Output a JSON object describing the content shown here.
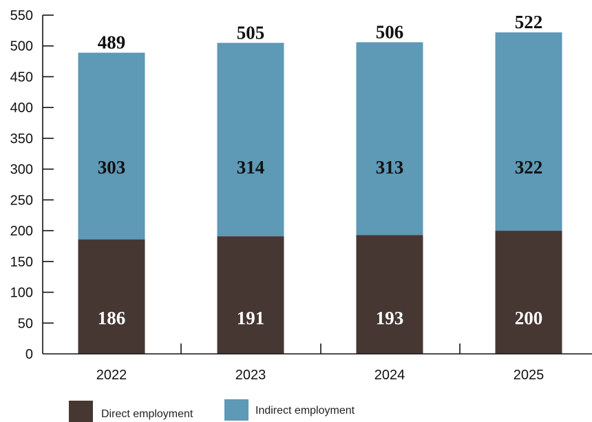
{
  "chart_data": {
    "type": "bar",
    "stacked": true,
    "title": "(... ... ...)",
    "categories": [
      "2022",
      "2023",
      "2024",
      "2025"
    ],
    "series": [
      {
        "name": "Direct employment",
        "values": [
          186,
          191,
          193,
          200
        ]
      },
      {
        "name": "Indirect employment",
        "values": [
          303,
          314,
          313,
          322
        ]
      }
    ],
    "totals": [
      489,
      505,
      506,
      522
    ],
    "y_ticks": [
      0,
      50,
      100,
      150,
      200,
      250,
      300,
      350,
      400,
      450,
      500,
      550
    ],
    "ylim": [
      0,
      550
    ],
    "xlabel": "",
    "ylabel": "",
    "grid": false,
    "legend_position": "bottom-left"
  },
  "colors": {
    "direct": "#463733",
    "indirect": "#5e99b6",
    "axis": "#111111",
    "label_on_dark": "#ffffff",
    "label_on_light": "#111111"
  }
}
